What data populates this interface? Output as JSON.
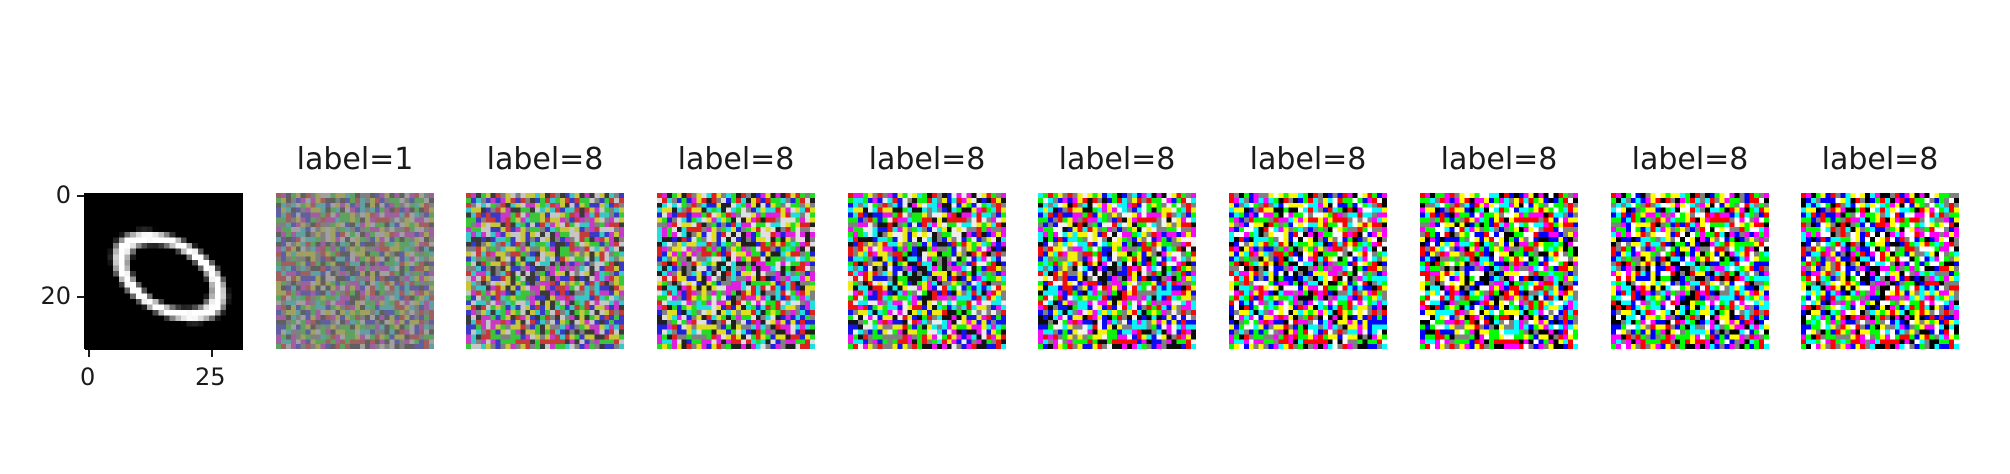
{
  "figure": {
    "panels": [
      {
        "title": "",
        "kind": "digit",
        "digit": "0"
      },
      {
        "title": "label=1",
        "kind": "noise",
        "intensity": 0.25
      },
      {
        "title": "label=8",
        "kind": "noise",
        "intensity": 0.55
      },
      {
        "title": "label=8",
        "kind": "noise",
        "intensity": 0.75
      },
      {
        "title": "label=8",
        "kind": "noise",
        "intensity": 0.85
      },
      {
        "title": "label=8",
        "kind": "noise",
        "intensity": 0.9
      },
      {
        "title": "label=8",
        "kind": "noise",
        "intensity": 0.95
      },
      {
        "title": "label=8",
        "kind": "noise",
        "intensity": 1.0
      },
      {
        "title": "label=8",
        "kind": "noise",
        "intensity": 1.0
      },
      {
        "title": "label=8",
        "kind": "noise",
        "intensity": 1.0
      }
    ],
    "first_panel_axes": {
      "y_ticks": [
        "0",
        "20"
      ],
      "x_ticks": [
        "0",
        "25"
      ]
    }
  }
}
